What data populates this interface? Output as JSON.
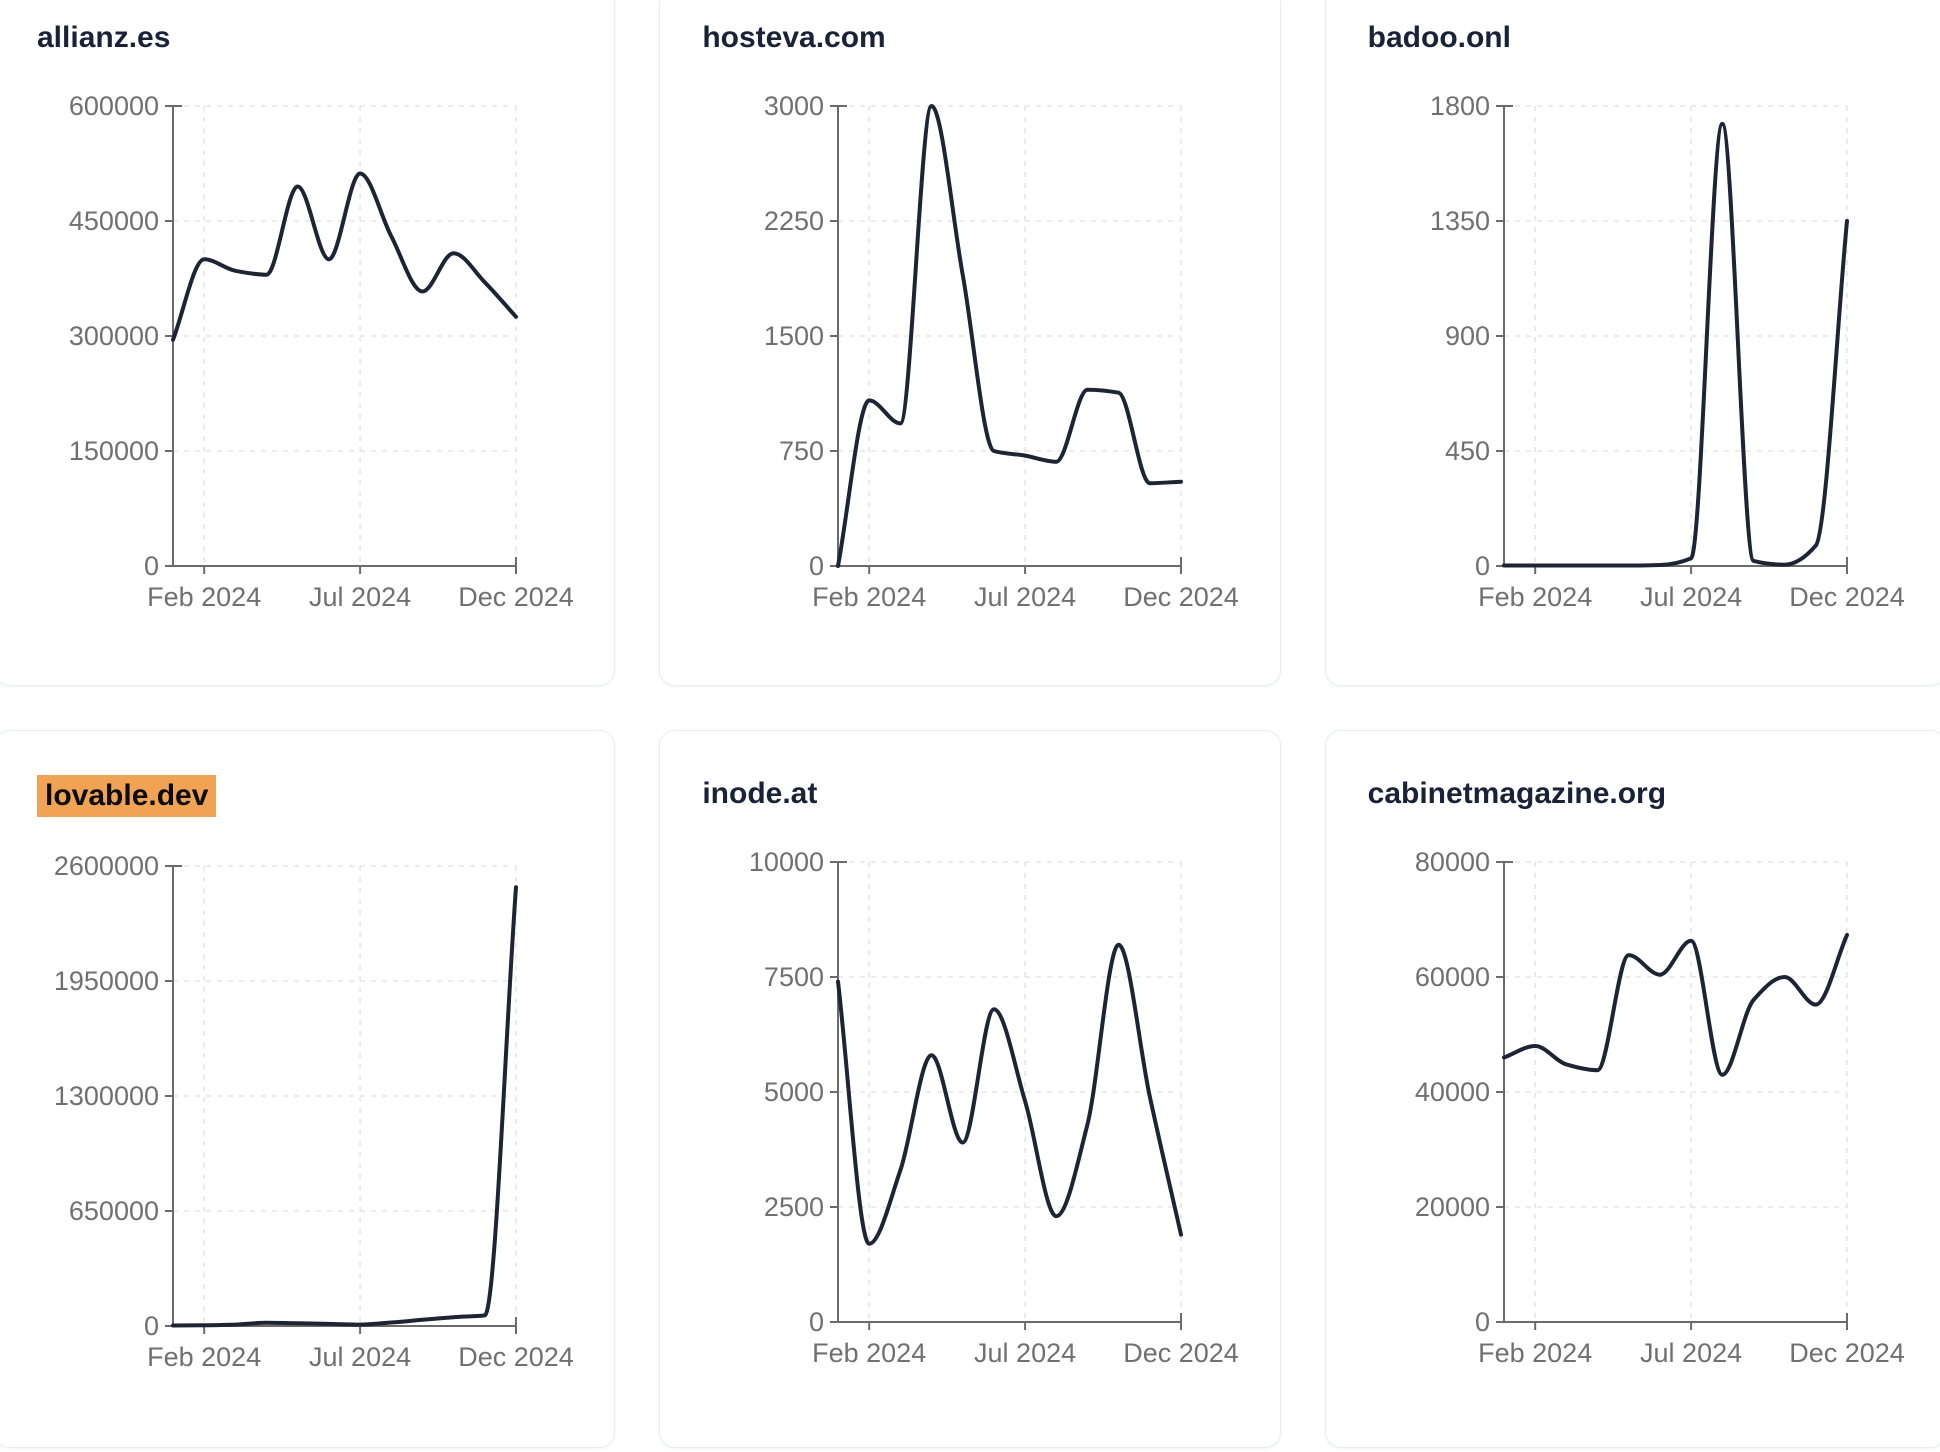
{
  "style": {
    "css_vars": {
      "line": "#1d2433",
      "axis": "#6b6b6b",
      "label": "#707070",
      "grid": "#e6e6e6",
      "title": "#1a2238",
      "highlight-bg": "#f0a355",
      "highlight-text": "#0c0c0c",
      "card-border": "#e9edf3",
      "card-bg": "#ffffff",
      "page-bg": "#ffffff"
    }
  },
  "x_axis": {
    "tick_labels": [
      "Feb 2024",
      "Jul 2024",
      "Dec 2024"
    ]
  },
  "chart_data": [
    {
      "type": "line",
      "title": "allianz.es",
      "highlighted": false,
      "x": [
        "Jan 2024",
        "Feb 2024",
        "Mar 2024",
        "Apr 2024",
        "May 2024",
        "Jun 2024",
        "Jul 2024",
        "Aug 2024",
        "Sep 2024",
        "Oct 2024",
        "Nov 2024",
        "Dec 2024"
      ],
      "values": [
        295000,
        400000,
        385000,
        380000,
        495000,
        400000,
        512000,
        430000,
        358000,
        408000,
        370000,
        325000
      ],
      "y_ticks": [
        0,
        150000,
        300000,
        450000,
        600000
      ],
      "ylim": [
        0,
        600000
      ],
      "x_tick_labels": [
        "Feb 2024",
        "Jul 2024",
        "Dec 2024"
      ],
      "grid": true,
      "legend": "none"
    },
    {
      "type": "line",
      "title": "hosteva.com",
      "highlighted": false,
      "x": [
        "Jan 2024",
        "Feb 2024",
        "Mar 2024",
        "Apr 2024",
        "May 2024",
        "Jun 2024",
        "Jul 2024",
        "Aug 2024",
        "Sep 2024",
        "Oct 2024",
        "Nov 2024",
        "Dec 2024"
      ],
      "values": [
        0,
        1080,
        930,
        3000,
        1900,
        750,
        720,
        680,
        1150,
        1130,
        540,
        550
      ],
      "y_ticks": [
        0,
        750,
        1500,
        2250,
        3000
      ],
      "ylim": [
        0,
        3000
      ],
      "x_tick_labels": [
        "Feb 2024",
        "Jul 2024",
        "Dec 2024"
      ],
      "grid": true,
      "legend": "none"
    },
    {
      "type": "line",
      "title": "badoo.onl",
      "highlighted": false,
      "x": [
        "Jan 2024",
        "Feb 2024",
        "Mar 2024",
        "Apr 2024",
        "May 2024",
        "Jun 2024",
        "Jul 2024",
        "Aug 2024",
        "Sep 2024",
        "Oct 2024",
        "Nov 2024",
        "Dec 2024"
      ],
      "values": [
        2,
        2,
        2,
        2,
        2,
        4,
        30,
        1730,
        20,
        5,
        80,
        1350
      ],
      "y_ticks": [
        0,
        450,
        900,
        1350,
        1800
      ],
      "ylim": [
        0,
        1800
      ],
      "x_tick_labels": [
        "Feb 2024",
        "Jul 2024",
        "Dec 2024"
      ],
      "grid": true,
      "legend": "none"
    },
    {
      "type": "line",
      "title": "lovable.dev",
      "highlighted": true,
      "x": [
        "Jan 2024",
        "Feb 2024",
        "Mar 2024",
        "Apr 2024",
        "May 2024",
        "Jun 2024",
        "Jul 2024",
        "Aug 2024",
        "Sep 2024",
        "Oct 2024",
        "Nov 2024",
        "Dec 2024"
      ],
      "values": [
        3000,
        4000,
        8000,
        18000,
        15000,
        12000,
        8000,
        20000,
        35000,
        50000,
        60000,
        2480000
      ],
      "y_ticks": [
        0,
        650000,
        1300000,
        1950000,
        2600000
      ],
      "ylim": [
        0,
        2600000
      ],
      "x_tick_labels": [
        "Feb 2024",
        "Jul 2024",
        "Dec 2024"
      ],
      "grid": true,
      "legend": "none"
    },
    {
      "type": "line",
      "title": "inode.at",
      "highlighted": false,
      "x": [
        "Jan 2024",
        "Feb 2024",
        "Mar 2024",
        "Apr 2024",
        "May 2024",
        "Jun 2024",
        "Jul 2024",
        "Aug 2024",
        "Sep 2024",
        "Oct 2024",
        "Nov 2024",
        "Dec 2024"
      ],
      "values": [
        7400,
        1700,
        3300,
        5800,
        3900,
        6800,
        4800,
        2300,
        4300,
        8200,
        4900,
        1900
      ],
      "y_ticks": [
        0,
        2500,
        5000,
        7500,
        10000
      ],
      "ylim": [
        0,
        10000
      ],
      "x_tick_labels": [
        "Feb 2024",
        "Jul 2024",
        "Dec 2024"
      ],
      "grid": true,
      "legend": "none"
    },
    {
      "type": "line",
      "title": "cabinetmagazine.org",
      "highlighted": false,
      "x": [
        "Jan 2024",
        "Feb 2024",
        "Mar 2024",
        "Apr 2024",
        "May 2024",
        "Jun 2024",
        "Jul 2024",
        "Aug 2024",
        "Sep 2024",
        "Oct 2024",
        "Nov 2024",
        "Dec 2024"
      ],
      "values": [
        46000,
        48000,
        44800,
        43800,
        63800,
        60400,
        66300,
        43000,
        56000,
        60000,
        55200,
        67300
      ],
      "y_ticks": [
        0,
        20000,
        40000,
        60000,
        80000
      ],
      "ylim": [
        0,
        80000
      ],
      "x_tick_labels": [
        "Feb 2024",
        "Jul 2024",
        "Dec 2024"
      ],
      "grid": true,
      "legend": "none"
    }
  ]
}
